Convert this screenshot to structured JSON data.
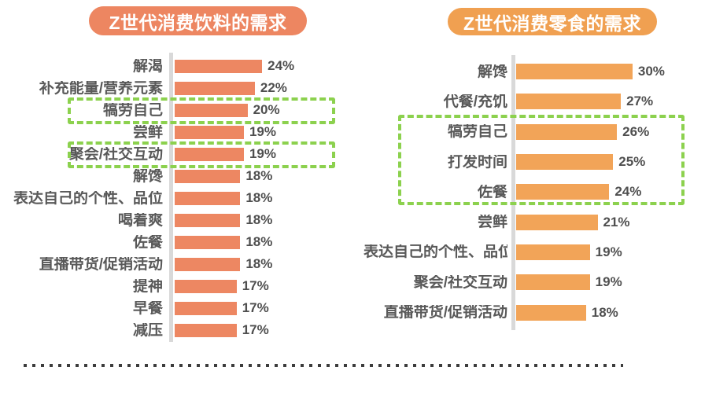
{
  "page": {
    "background": "#ffffff"
  },
  "chart_data": [
    {
      "type": "bar",
      "orientation": "horizontal",
      "title": "Z世代消费饮料的需求",
      "unit": "%",
      "categories": [
        "解渴",
        "补充能量/营养元素",
        "犒劳自己",
        "尝鲜",
        "聚会/社交互动",
        "解馋",
        "表达自己的个性、品位",
        "喝着爽",
        "佐餐",
        "直播带货/促销活动",
        "提神",
        "早餐",
        "减压"
      ],
      "values": [
        24,
        22,
        20,
        19,
        19,
        18,
        18,
        18,
        18,
        18,
        17,
        17,
        17
      ],
      "xlim": [
        0,
        26
      ],
      "grid": false,
      "legend": "none",
      "bar_color": "#ed8762",
      "title_bg": "#ed8661",
      "highlight_color": "#8cd14e",
      "highlighted_categories": [
        "犒劳自己",
        "聚会/社交互动"
      ],
      "highlight_boxes": [
        {
          "start": 2,
          "end": 2
        },
        {
          "start": 4,
          "end": 4
        }
      ]
    },
    {
      "type": "bar",
      "orientation": "horizontal",
      "title": "Z世代消费零食的需求",
      "unit": "%",
      "categories": [
        "解馋",
        "代餐/充饥",
        "犒劳自己",
        "打发时间",
        "佐餐",
        "尝鲜",
        "表达自己的个性、品位",
        "聚会/社交互动",
        "直播带货/促销活动"
      ],
      "values": [
        30,
        27,
        26,
        25,
        24,
        21,
        19,
        19,
        18
      ],
      "xlim": [
        0,
        32
      ],
      "grid": false,
      "legend": "none",
      "bar_color": "#f2a458",
      "title_bg": "#f0a051",
      "highlight_color": "#8cd14e",
      "highlighted_categories": [
        "犒劳自己",
        "打发时间",
        "佐餐"
      ],
      "highlight_boxes": [
        {
          "start": 2,
          "end": 4
        }
      ]
    }
  ]
}
